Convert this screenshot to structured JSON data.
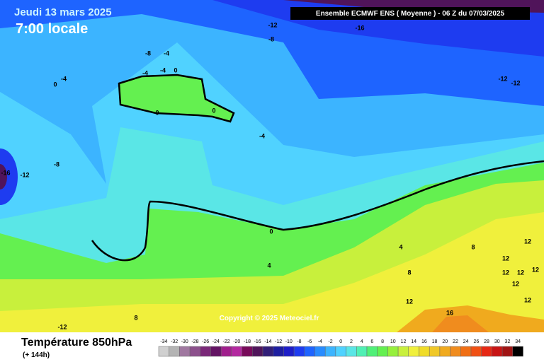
{
  "header": {
    "date": "Jeudi 13 mars 2025",
    "time": "7:00 locale",
    "model": "Ensemble ECMWF ENS  ( Moyenne )  - 06 Z du 07/03/2025"
  },
  "map": {
    "copyright": "Copyright © 2025 Meteociel.fr",
    "contour_labels": [
      -12,
      -16,
      -8,
      -8,
      -4,
      -4,
      -4,
      -4,
      0,
      0,
      -12,
      -12,
      0,
      0,
      -4,
      -8,
      -16,
      -12,
      0,
      4,
      4,
      8,
      12,
      12,
      12,
      12,
      8,
      12,
      12,
      12,
      12,
      16,
      8,
      -12
    ]
  },
  "footer": {
    "title": "Température 850hPa",
    "lead": "(+ 144h)"
  },
  "scale": {
    "labels": [
      -34,
      -32,
      -30,
      -28,
      -26,
      -24,
      -22,
      -20,
      -18,
      -16,
      -14,
      -12,
      -10,
      -8,
      -6,
      -4,
      -2,
      0,
      2,
      4,
      6,
      8,
      10,
      12,
      14,
      16,
      18,
      20,
      22,
      24,
      26,
      28,
      30,
      32,
      34
    ],
    "colors": [
      "#d0d0d0",
      "#b4b4b4",
      "#a078a0",
      "#8c508c",
      "#7a2878",
      "#641464",
      "#a01e8c",
      "#b428a0",
      "#780a5a",
      "#50145a",
      "#321e78",
      "#1e1ea0",
      "#1e1ec8",
      "#1e3cf0",
      "#1e64ff",
      "#288cff",
      "#3cb4ff",
      "#50d2ff",
      "#5ae6e6",
      "#50f0b4",
      "#50f078",
      "#64f050",
      "#96f03c",
      "#c8f03c",
      "#f0f03c",
      "#f0dc28",
      "#f0c828",
      "#f0aa1e",
      "#f08c1e",
      "#f06e14",
      "#f05014",
      "#e62814",
      "#c81414",
      "#a01414",
      "#000000"
    ]
  }
}
